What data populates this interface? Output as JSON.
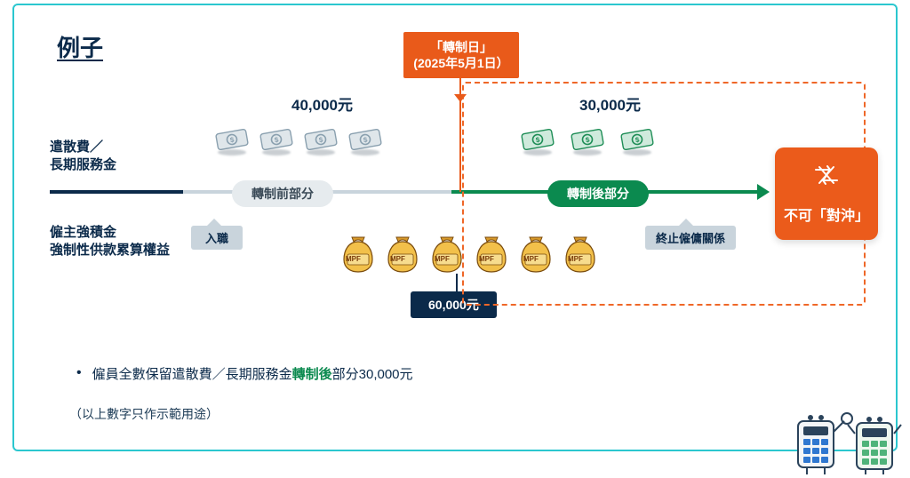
{
  "title": "例子",
  "left_labels": {
    "sp_lsp": "遣散費／\n長期服務金",
    "mpf": "僱主強積金\n強制性供款累算權益"
  },
  "transition": {
    "line1": "「轉制日」",
    "line2": "(2025年5月1日）"
  },
  "pills": {
    "pre": "轉制前部分",
    "post": "轉制後部分"
  },
  "tags": {
    "entry": "入職",
    "term": "終止僱傭關係"
  },
  "amounts": {
    "pre": "40,000元",
    "post": "30,000元",
    "mpf": "60,000元"
  },
  "right_card": "不可「對沖」",
  "bullet_parts": {
    "a": "僱員全數保留遣散費／長期服務金",
    "b": "轉制後",
    "c": "部分30,000元"
  },
  "disclaimer": "（以上數字只作示範用途）",
  "mpf_label": "MPF",
  "colors": {
    "accent_orange": "#e95a1a",
    "accent_green": "#0b8a4f",
    "navy": "#0b2a4a",
    "frame": "#2bc7cf",
    "grey_pill": "#e6ebee",
    "tag_grey": "#c9d4dc"
  },
  "layout": {
    "cash_pre_x": [
      226,
      276,
      326,
      376
    ],
    "cash_post_x": [
      570,
      626,
      682
    ],
    "bag_x": [
      366,
      416,
      466,
      516,
      566,
      616
    ]
  }
}
